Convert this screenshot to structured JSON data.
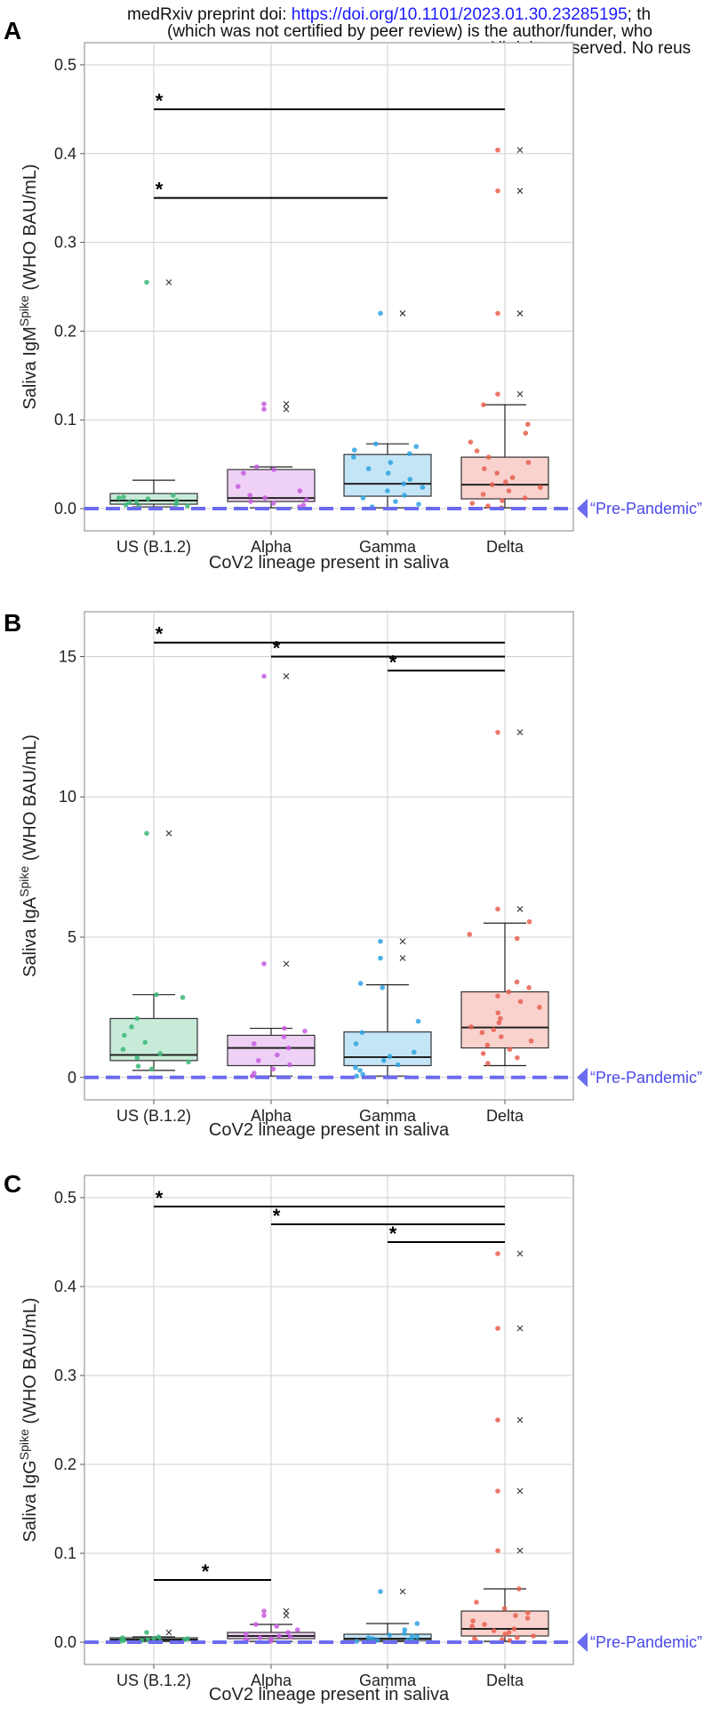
{
  "header": {
    "line1_prefix": "medRxiv preprint doi: ",
    "line1_link": "https://doi.org/10.1101/2023.01.30.23285195",
    "line1_suffix": "; th",
    "line2": "(which was not certified by peer review) is the author/funder, who",
    "line3": "All rights reserved. No reus"
  },
  "colors": {
    "US (B.1.2)": "#3cb878",
    "Alpha": "#c75ce0",
    "Gamma": "#2ea3e0",
    "Delta": "#e8604f",
    "prepandemic": "#6b6bf0",
    "grid": "#cfcfcf"
  },
  "chart_data": [
    {
      "type": "box",
      "panel_label": "A",
      "ylabel": "Saliva IgMSpike (WHO BAU/mL)",
      "ylabel_main": "Saliva IgM",
      "ylabel_sup": "Spike",
      "ylabel_unit": " (WHO BAU/mL)",
      "xlabel": "CoV2 lineage present in saliva",
      "categories": [
        "US (B.1.2)",
        "Alpha",
        "Gamma",
        "Delta"
      ],
      "ylim": [
        -0.025,
        0.525
      ],
      "yticks": [
        0.0,
        0.1,
        0.2,
        0.3,
        0.4,
        0.5
      ],
      "ytick_labels": [
        "0.0",
        "0.1",
        "0.2",
        "0.3",
        "0.4",
        "0.5"
      ],
      "reference_line": {
        "value": 0.0,
        "label": "“Pre-Pandemic”"
      },
      "boxes": [
        {
          "q1": 0.005,
          "median": 0.009,
          "q3": 0.017,
          "whisker_low": 0.002,
          "whisker_high": 0.032
        },
        {
          "q1": 0.008,
          "median": 0.012,
          "q3": 0.044,
          "whisker_low": 0.001,
          "whisker_high": 0.047
        },
        {
          "q1": 0.014,
          "median": 0.028,
          "q3": 0.061,
          "whisker_low": 0.001,
          "whisker_high": 0.073
        },
        {
          "q1": 0.011,
          "median": 0.027,
          "q3": 0.058,
          "whisker_low": 0.001,
          "whisker_high": 0.117
        }
      ],
      "outliers": [
        [
          0.255
        ],
        [
          0.118,
          0.112
        ],
        [
          0.22
        ],
        [
          0.404,
          0.358,
          0.22,
          0.129
        ]
      ],
      "points": [
        [
          0.255,
          0.013,
          0.011,
          0.009,
          0.007,
          0.005,
          0.004,
          0.003,
          0.002,
          0.015,
          0.012,
          0.008
        ],
        [
          0.118,
          0.112,
          0.047,
          0.044,
          0.04,
          0.025,
          0.02,
          0.015,
          0.012,
          0.01,
          0.008,
          0.006,
          0.004,
          0.002
        ],
        [
          0.22,
          0.073,
          0.07,
          0.066,
          0.062,
          0.058,
          0.052,
          0.045,
          0.04,
          0.033,
          0.028,
          0.024,
          0.02,
          0.015,
          0.012,
          0.008,
          0.005,
          0.002
        ],
        [
          0.404,
          0.358,
          0.22,
          0.129,
          0.117,
          0.095,
          0.085,
          0.075,
          0.065,
          0.058,
          0.052,
          0.045,
          0.04,
          0.035,
          0.03,
          0.027,
          0.024,
          0.02,
          0.016,
          0.012,
          0.009,
          0.006,
          0.003,
          0.001
        ]
      ],
      "significance": [
        {
          "from": 0,
          "to": 3,
          "y": 0.45,
          "label": "*"
        },
        {
          "from": 0,
          "to": 2,
          "y": 0.35,
          "label": "*"
        }
      ],
      "grid": true
    },
    {
      "type": "box",
      "panel_label": "B",
      "ylabel": "Saliva IgASpike (WHO BAU/mL)",
      "ylabel_main": "Saliva IgA",
      "ylabel_sup": "Spike",
      "ylabel_unit": " (WHO BAU/mL)",
      "xlabel": "CoV2 lineage present in saliva",
      "categories": [
        "US (B.1.2)",
        "Alpha",
        "Gamma",
        "Delta"
      ],
      "ylim": [
        -0.8,
        16.6
      ],
      "yticks": [
        0,
        5,
        10,
        15
      ],
      "ytick_labels": [
        "0",
        "5",
        "10",
        "15"
      ],
      "reference_line": {
        "value": 0.0,
        "label": "“Pre-Pandemic”"
      },
      "boxes": [
        {
          "q1": 0.6,
          "median": 0.8,
          "q3": 2.1,
          "whisker_low": 0.25,
          "whisker_high": 2.95
        },
        {
          "q1": 0.42,
          "median": 1.05,
          "q3": 1.5,
          "whisker_low": 0.05,
          "whisker_high": 1.75
        },
        {
          "q1": 0.42,
          "median": 0.72,
          "q3": 1.62,
          "whisker_low": 0.05,
          "whisker_high": 3.3
        },
        {
          "q1": 1.05,
          "median": 1.78,
          "q3": 3.05,
          "whisker_low": 0.42,
          "whisker_high": 5.5
        }
      ],
      "outliers": [
        [
          8.7
        ],
        [
          14.3,
          4.05
        ],
        [
          4.85,
          4.25
        ],
        [
          12.3,
          6.0
        ]
      ],
      "points": [
        [
          8.7,
          2.95,
          2.85,
          2.1,
          1.8,
          1.5,
          1.25,
          1.0,
          0.85,
          0.7,
          0.55,
          0.4,
          0.3
        ],
        [
          14.3,
          4.05,
          1.75,
          1.65,
          1.45,
          1.2,
          1.05,
          0.8,
          0.6,
          0.45,
          0.3,
          0.15,
          0.05
        ],
        [
          4.85,
          4.25,
          3.35,
          3.2,
          2.0,
          1.6,
          1.2,
          0.9,
          0.75,
          0.6,
          0.45,
          0.35,
          0.25,
          0.1,
          0.05
        ],
        [
          12.3,
          6.0,
          5.55,
          5.1,
          4.95,
          3.4,
          3.2,
          3.05,
          2.9,
          2.7,
          2.5,
          2.3,
          2.1,
          1.95,
          1.8,
          1.7,
          1.6,
          1.45,
          1.3,
          1.15,
          1.0,
          0.85,
          0.7,
          0.5
        ]
      ],
      "significance": [
        {
          "from": 0,
          "to": 3,
          "y": 15.5,
          "label": "*"
        },
        {
          "from": 1,
          "to": 3,
          "y": 15.0,
          "label": "*"
        },
        {
          "from": 2,
          "to": 3,
          "y": 14.5,
          "label": "*"
        }
      ],
      "grid": true
    },
    {
      "type": "box",
      "panel_label": "C",
      "ylabel": "Saliva IgGSpike (WHO BAU/mL)",
      "ylabel_main": "Saliva IgG",
      "ylabel_sup": "Spike",
      "ylabel_unit": " (WHO BAU/mL)",
      "xlabel": "CoV2 lineage present in saliva",
      "categories": [
        "US (B.1.2)",
        "Alpha",
        "Gamma",
        "Delta"
      ],
      "ylim": [
        -0.025,
        0.525
      ],
      "yticks": [
        0.0,
        0.1,
        0.2,
        0.3,
        0.4,
        0.5
      ],
      "ytick_labels": [
        "0.0",
        "0.1",
        "0.2",
        "0.3",
        "0.4",
        "0.5"
      ],
      "reference_line": {
        "value": 0.0,
        "label": "“Pre-Pandemic”"
      },
      "boxes": [
        {
          "q1": 0.002,
          "median": 0.003,
          "q3": 0.005,
          "whisker_low": 0.001,
          "whisker_high": 0.006
        },
        {
          "q1": 0.004,
          "median": 0.007,
          "q3": 0.011,
          "whisker_low": 0.001,
          "whisker_high": 0.02
        },
        {
          "q1": 0.002,
          "median": 0.004,
          "q3": 0.009,
          "whisker_low": 0.001,
          "whisker_high": 0.021
        },
        {
          "q1": 0.007,
          "median": 0.015,
          "q3": 0.035,
          "whisker_low": 0.001,
          "whisker_high": 0.06
        }
      ],
      "outliers": [
        [
          0.011
        ],
        [
          0.035,
          0.03
        ],
        [
          0.057
        ],
        [
          0.437,
          0.353,
          0.25,
          0.17,
          0.103
        ]
      ],
      "points": [
        [
          0.011,
          0.006,
          0.005,
          0.004,
          0.004,
          0.003,
          0.003,
          0.002,
          0.002,
          0.001,
          0.001
        ],
        [
          0.035,
          0.03,
          0.02,
          0.018,
          0.014,
          0.011,
          0.009,
          0.007,
          0.006,
          0.005,
          0.004,
          0.003,
          0.002,
          0.001
        ],
        [
          0.057,
          0.021,
          0.014,
          0.01,
          0.008,
          0.007,
          0.006,
          0.005,
          0.004,
          0.003,
          0.002,
          0.002,
          0.001
        ],
        [
          0.437,
          0.353,
          0.25,
          0.17,
          0.103,
          0.06,
          0.045,
          0.038,
          0.033,
          0.03,
          0.027,
          0.024,
          0.02,
          0.018,
          0.015,
          0.013,
          0.011,
          0.009,
          0.007,
          0.005,
          0.004,
          0.003,
          0.002,
          0.001
        ]
      ],
      "significance": [
        {
          "from": 0,
          "to": 3,
          "y": 0.49,
          "label": "*"
        },
        {
          "from": 1,
          "to": 3,
          "y": 0.47,
          "label": "*"
        },
        {
          "from": 2,
          "to": 3,
          "y": 0.45,
          "label": "*"
        },
        {
          "from": 0,
          "to": 1,
          "y": 0.07,
          "label": "*"
        }
      ],
      "grid": true
    }
  ]
}
